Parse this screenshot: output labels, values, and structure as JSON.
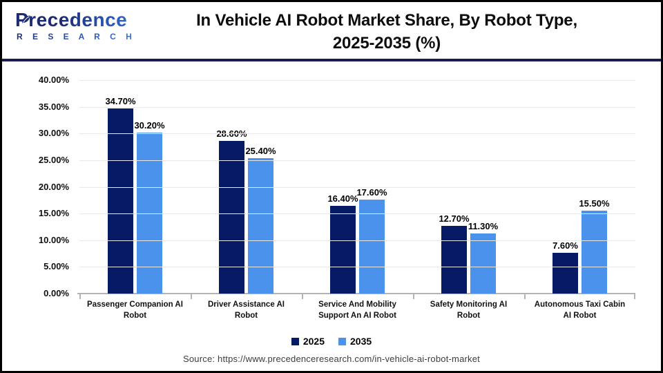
{
  "header": {
    "logo_name": "Precedence",
    "logo_sub": "R E S E A R C H",
    "title_line1": "In Vehicle AI Robot Market Share, By Robot Type,",
    "title_line2": "2025-2035 (%)"
  },
  "chart_data": {
    "type": "bar",
    "title": "In Vehicle AI Robot Market Share, By Robot Type, 2025-2035 (%)",
    "categories": [
      "Passenger Companion AI Robot",
      "Driver Assistance AI Robot",
      "Service And Mobility Support An AI Robot",
      "Safety Monitoring AI Robot",
      "Autonomous Taxi Cabin AI Robot"
    ],
    "series": [
      {
        "name": "2025",
        "color": "#071a66",
        "values": [
          34.7,
          28.6,
          16.4,
          12.7,
          7.6
        ],
        "labels": [
          "34.70%",
          "28.60%",
          "16.40%",
          "12.70%",
          "7.60%"
        ]
      },
      {
        "name": "2035",
        "color": "#4a92ec",
        "values": [
          30.2,
          25.4,
          17.6,
          11.3,
          15.5
        ],
        "labels": [
          "30.20%",
          "25.40%",
          "17.60%",
          "11.30%",
          "15.50%"
        ]
      }
    ],
    "xlabel": "",
    "ylabel": "",
    "ylim": [
      0,
      40
    ],
    "ytick_step": 5,
    "y_ticks": [
      "40.00%",
      "35.00%",
      "30.00%",
      "25.00%",
      "20.00%",
      "15.00%",
      "10.00%",
      "5.00%",
      "0.00%"
    ],
    "grid": true,
    "legend_position": "bottom"
  },
  "footer": {
    "source": "Source: https://www.precedenceresearch.com/in-vehicle-ai-robot-market"
  },
  "colors": {
    "series_2025": "#071a66",
    "series_2035": "#4a92ec",
    "divider": "#191d4f",
    "gridline": "#e9e9e9",
    "axis": "#b3b3b3"
  }
}
